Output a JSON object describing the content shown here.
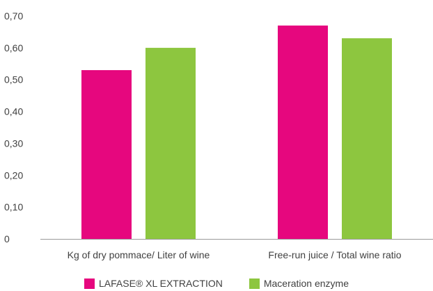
{
  "chart_data": {
    "type": "bar",
    "categories": [
      "Kg of dry pommace/ Liter of wine",
      "Free-run juice / Total wine ratio"
    ],
    "series": [
      {
        "name": "LAFASE® XL EXTRACTION",
        "color": "#e6077e",
        "values": [
          0.53,
          0.67
        ]
      },
      {
        "name": "Maceration enzyme",
        "color": "#8dc63f",
        "values": [
          0.6,
          0.63
        ]
      }
    ],
    "yticks": [
      "0",
      "0,10",
      "0,20",
      "0,30",
      "0,40",
      "0,50",
      "0,60",
      "0,70"
    ],
    "ylim": [
      0,
      0.7
    ],
    "grid": false,
    "legend_position": "bottom-center"
  }
}
